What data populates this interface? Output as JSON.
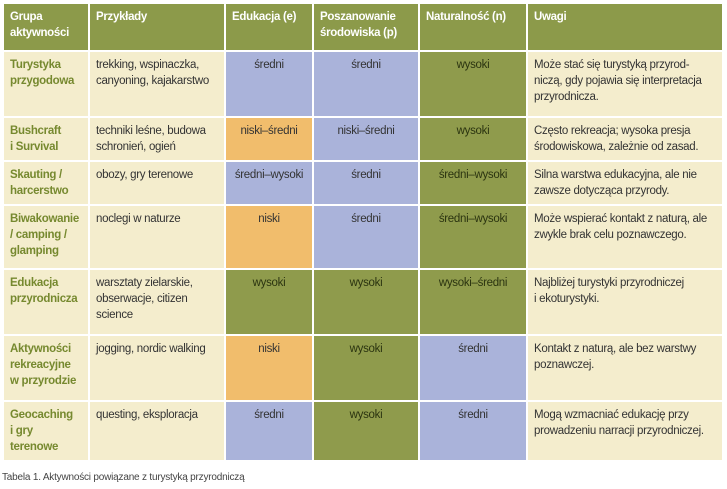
{
  "table": {
    "header": [
      "Grupa\naktywności",
      "Przykłady",
      "Edukacja (e)",
      "Poszanowanie\nśrodowiska (p)",
      "Naturalność (n)",
      "Uwagi"
    ],
    "rows": [
      [
        "Turystyka\nprzygodowa",
        "trekking, wspinaczka,\ncanyoning, kajakarstwo",
        "średni",
        "średni",
        "wysoki",
        "Może stać się turystyką przyrod-\nniczą, gdy pojawia się interpretacja\nprzyrodnicza."
      ],
      [
        "Bushcraft\ni Survival",
        "techniki leśne, budowa\nschronień, ogień",
        "niski–średni",
        "niski–średni",
        "wysoki",
        "Często rekreacja; wysoka presja\nśrodowiskowa, zależnie od zasad."
      ],
      [
        "Skauting /\nharcerstwo",
        "obozy, gry terenowe",
        "średni–wysoki",
        "średni",
        "średni–wysoki",
        "Silna warstwa edukacyjna, ale nie\nzawsze dotycząca przyrody."
      ],
      [
        "Biwakowanie\n/ camping /\nglamping",
        "noclegi w naturze",
        "niski",
        "średni",
        "średni–wysoki",
        "Może wspierać kontakt z naturą, ale\nzwykle brak celu poznawczego."
      ],
      [
        "Edukacja\nprzyrodnicza",
        "warsztaty zielarskie,\nobserwacje, citizen\nscience",
        "wysoki",
        "wysoki",
        "wysoki–średni",
        "Najbliżej turystyki przyrodniczej\ni ekoturystyki."
      ],
      [
        "Aktywności\nrekreacyjne\nw przyrodzie",
        "jogging, nordic walking",
        "niski",
        "wysoki",
        "średni",
        "Kontakt z naturą, ale bez warstwy\npoznawczej."
      ],
      [
        "Geocaching\ni gry terenowe",
        "questing, eksploracja",
        "średni",
        "wysoki",
        "średni",
        "Mogą wzmacniać edukację przy\nprowadzeniu narracji przyrodniczej."
      ]
    ],
    "caption": "Tabela 1. Aktywności powiązane z turystyką przyrodniczą"
  }
}
